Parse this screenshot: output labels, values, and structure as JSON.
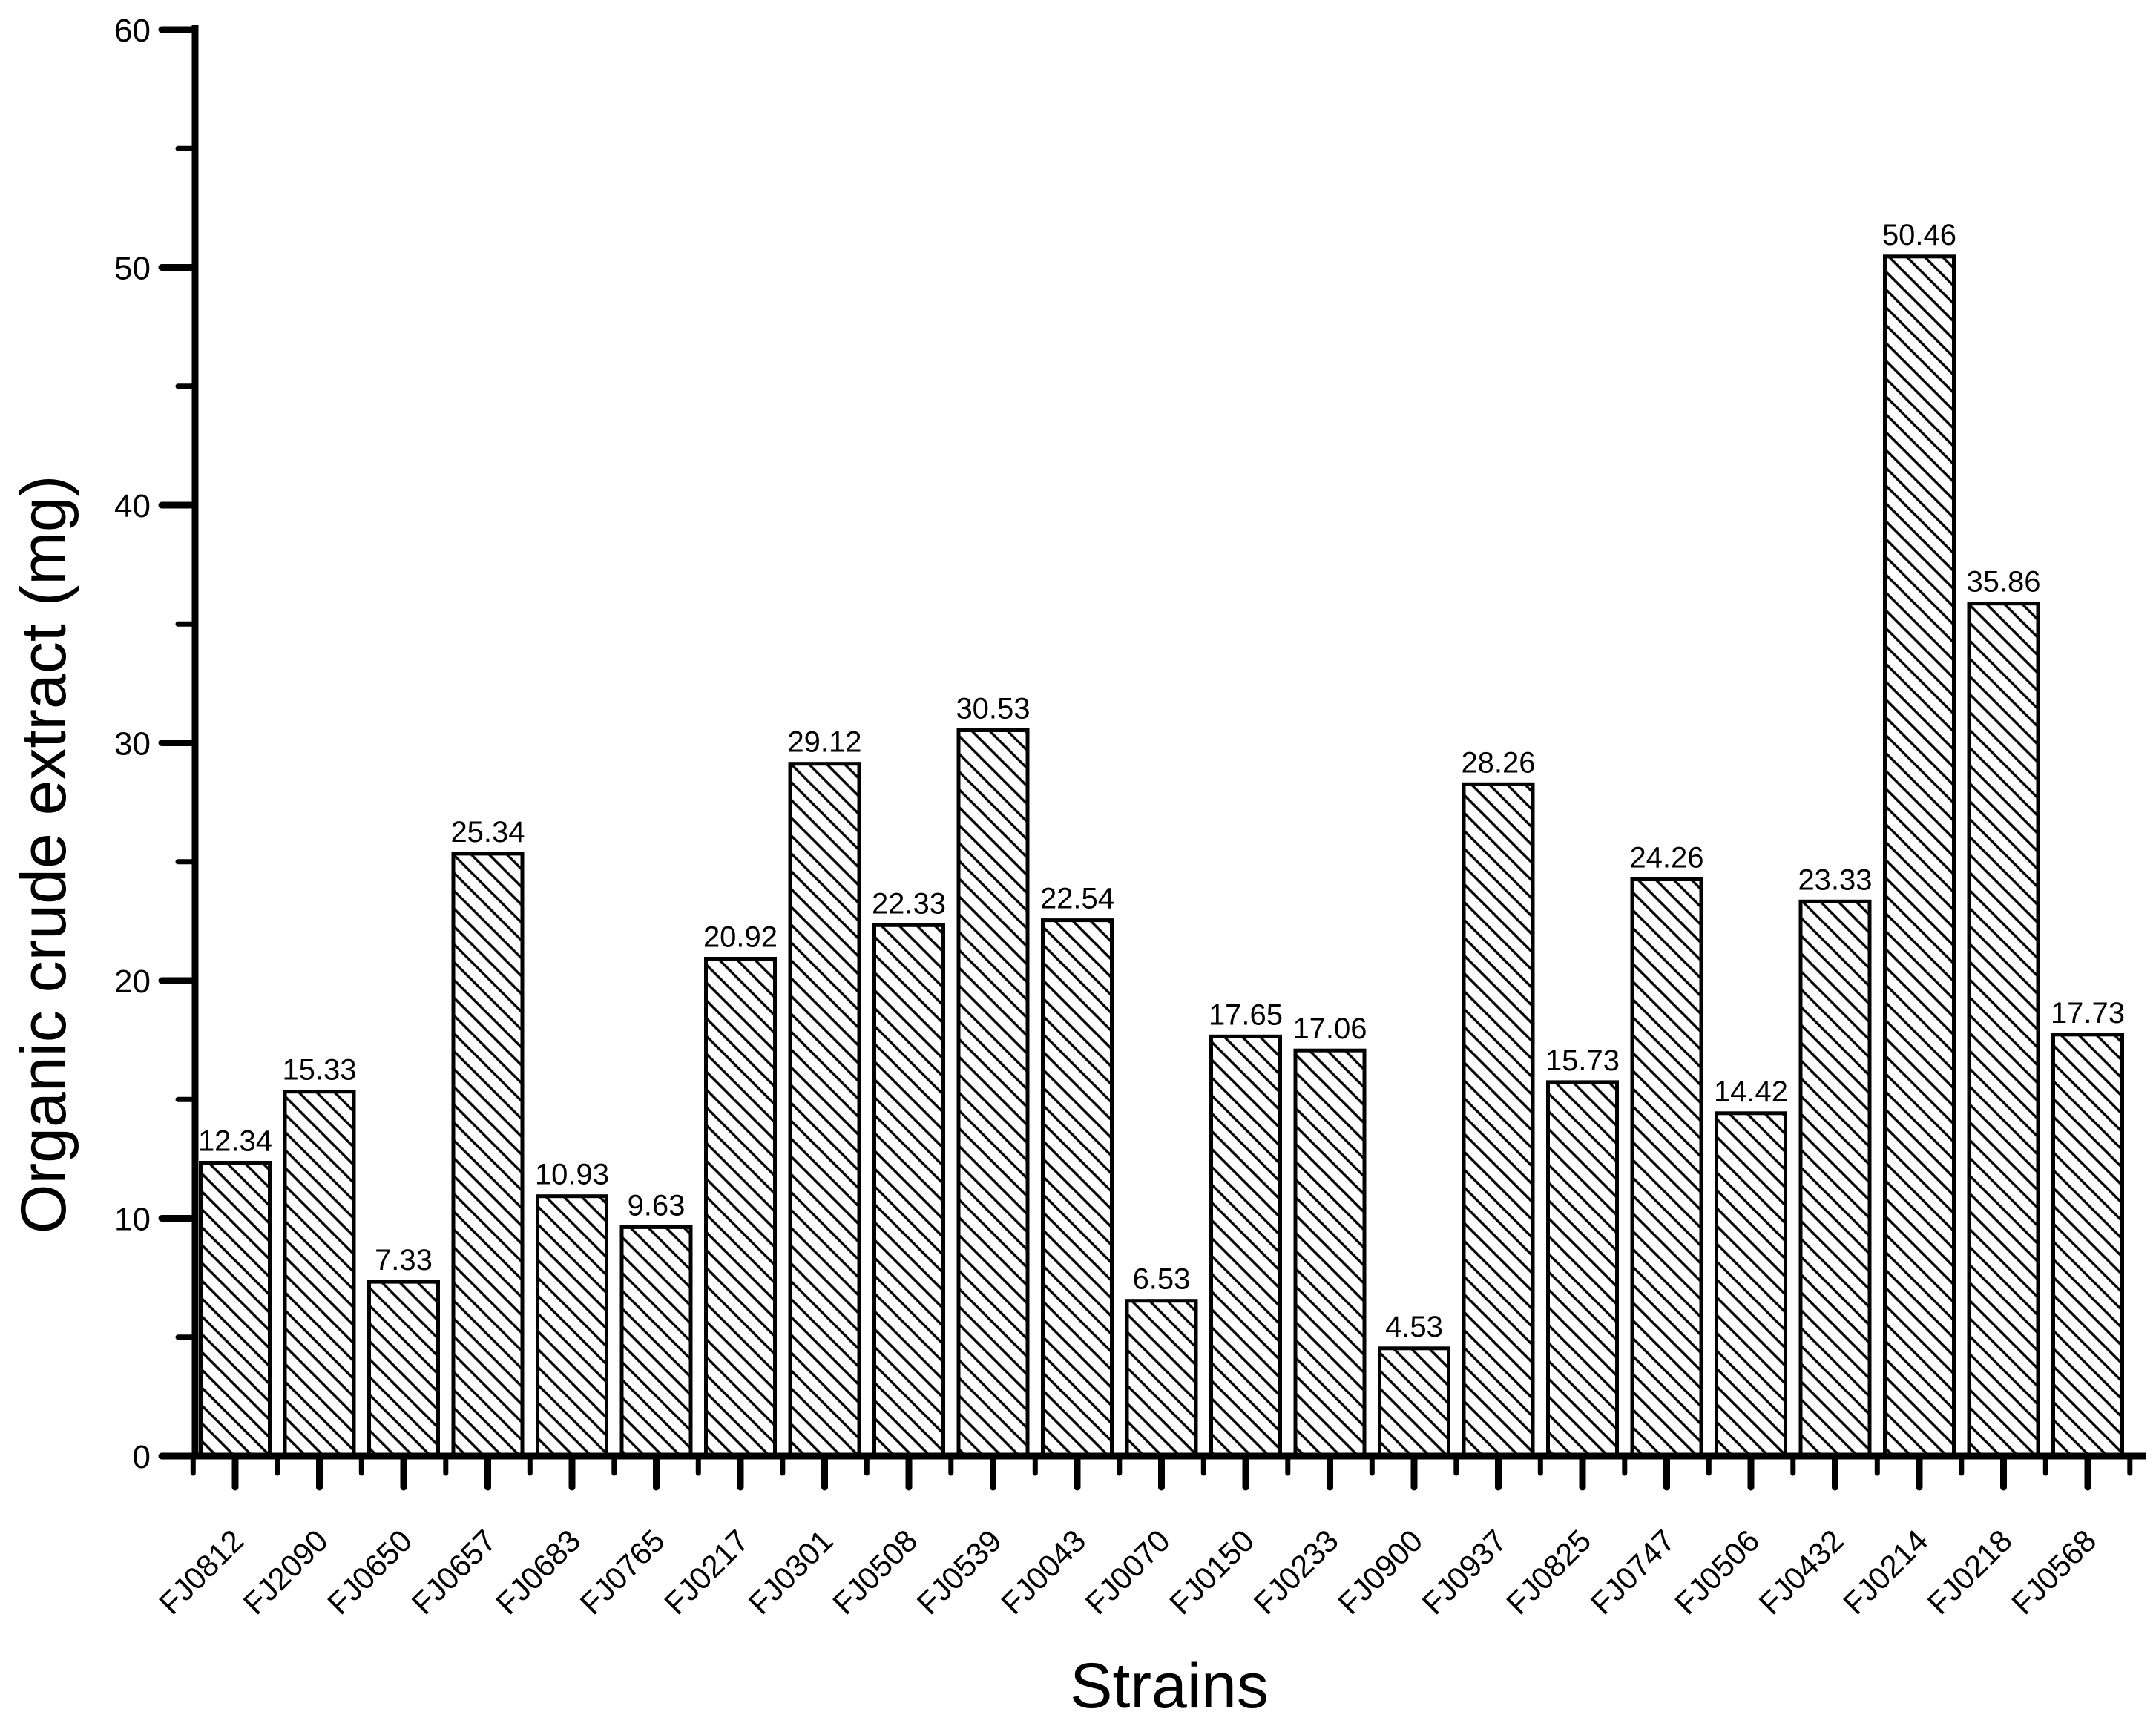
{
  "chart_data": {
    "type": "bar",
    "title": "",
    "xlabel": "Strains",
    "ylabel": "Organic crude extract (mg)",
    "categories": [
      "FJ0812",
      "FJ2090",
      "FJ0650",
      "FJ0657",
      "FJ0683",
      "FJ0765",
      "FJ0217",
      "FJ0301",
      "FJ0508",
      "FJ0539",
      "FJ0043",
      "FJ0070",
      "FJ0150",
      "FJ0233",
      "FJ0900",
      "FJ0937",
      "FJ0825",
      "FJ0747",
      "FJ0506",
      "FJ0432",
      "FJ0214",
      "FJ0218",
      "FJ0568"
    ],
    "values": [
      12.34,
      15.33,
      7.33,
      25.34,
      10.93,
      9.63,
      20.92,
      29.12,
      22.33,
      30.53,
      22.54,
      6.53,
      17.65,
      17.06,
      4.53,
      28.26,
      15.73,
      24.26,
      14.42,
      23.33,
      50.46,
      35.86,
      17.73
    ],
    "bar_value_labels": [
      "12.34",
      "15.33",
      "7.33",
      "25.34",
      "10.93",
      "9.63",
      "20.92",
      "29.12",
      "22.33",
      "30.53",
      "22.54",
      "6.53",
      "17.65",
      "17.06",
      "4.53",
      "28.26",
      "15.73",
      "24.26",
      "14.42",
      "23.33",
      "50.46",
      "35.86",
      "17.73"
    ],
    "ylim": [
      0,
      60
    ],
    "ytick_labels": [
      "0",
      "10",
      "20",
      "30",
      "40",
      "50",
      "60"
    ],
    "ytick_major_step": 10,
    "ytick_minor_step": 5,
    "x_tick_label_rotation_deg": 45,
    "grid": false,
    "legend": null,
    "bar_fill_style": "diagonal-backslash-hatch",
    "bar_outline_color": "#000000",
    "bar_fill_background": "#ffffff",
    "axis_color": "#000000",
    "background_color": "#ffffff"
  }
}
